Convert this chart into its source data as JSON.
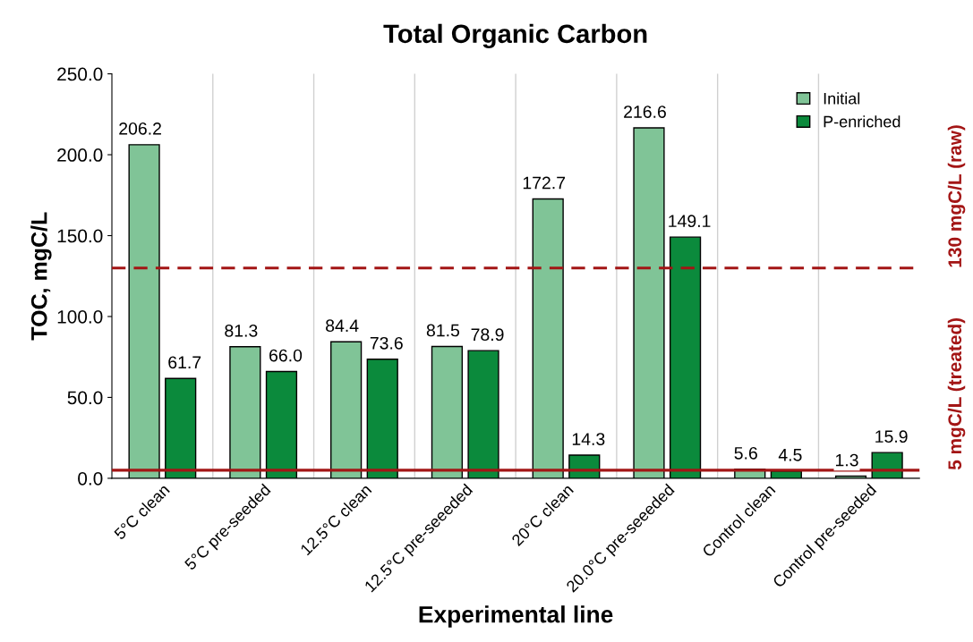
{
  "chart_data": {
    "type": "bar",
    "title": "Total Organic Carbon",
    "xlabel": "Experimental line",
    "ylabel": "TOC, mgC/L",
    "categories": [
      "5°C clean",
      "5°C pre-seeded",
      "12.5°C clean",
      "12.5°C pre-seeeded",
      "20°C clean",
      "20.0°C pre-seeeded",
      "Control clean",
      "Control pre-seeded"
    ],
    "series": [
      {
        "name": "Initial",
        "color": "#80c497",
        "values": [
          206.2,
          81.3,
          84.4,
          81.5,
          172.7,
          216.6,
          5.6,
          1.3
        ],
        "value_labels": [
          "206.2",
          "81.3",
          "84.4",
          "81.5",
          "172.7",
          "216.6",
          "5.6",
          "1.3"
        ]
      },
      {
        "name": "P-enriched",
        "color": "#0b8a3c",
        "values": [
          61.7,
          66.0,
          73.6,
          78.9,
          14.3,
          149.1,
          4.5,
          15.9
        ],
        "value_labels": [
          "61.7",
          "66.0",
          "73.6",
          "78.9",
          "14.3",
          "149.1",
          "4.5",
          "15.9"
        ]
      }
    ],
    "ylim": [
      0,
      250
    ],
    "yticks": [
      {
        "value": 0,
        "label": "0.0"
      },
      {
        "value": 50,
        "label": "50.0"
      },
      {
        "value": 100,
        "label": "100.0"
      },
      {
        "value": 150,
        "label": "150.0"
      },
      {
        "value": 200,
        "label": "200.0"
      },
      {
        "value": 250,
        "label": "250.0"
      }
    ],
    "ref_lines": [
      {
        "axis": "y",
        "value": 130,
        "label": "130 mgC/L (raw)",
        "color": "#a31515",
        "line_style": "dashed"
      },
      {
        "axis": "y",
        "value": 5,
        "label": "5 mgC/L (treated)",
        "color": "#a31515",
        "line_style": "solid"
      }
    ],
    "grid": "x",
    "legend": "top right"
  }
}
